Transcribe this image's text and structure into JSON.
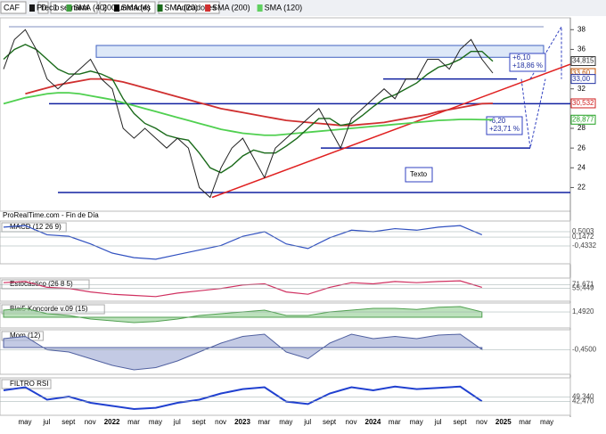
{
  "toolbar": {
    "symbol": "CAF",
    "period_key": "D",
    "period": "1 semana",
    "units": "200 unidades",
    "indicators": "Indicadores"
  },
  "legend": [
    "Precio",
    "SMA (40)",
    "SMA (4)",
    "SMA (20)",
    "SMA (200)",
    "SMA (120)"
  ],
  "main": {
    "source": "ProRealTime.com - Fin de Día",
    "ylim": [
      19.6,
      39.2
    ],
    "yticks": [
      38,
      36,
      32,
      28,
      26,
      24,
      22
    ],
    "tags": [
      {
        "value": 34.815,
        "label": "34,815",
        "color": "#333"
      },
      {
        "value": 33.6,
        "label": "33,60",
        "color": "#c05000"
      },
      {
        "value": 33.0,
        "label": "33,00",
        "color": "#2030a0"
      },
      {
        "value": 30.532,
        "label": "30,532",
        "color": "#d02020"
      },
      {
        "value": 28.877,
        "label": "28,877",
        "color": "#20a020"
      }
    ],
    "price": [
      34,
      37,
      38,
      36,
      33,
      32,
      33,
      34,
      35,
      33,
      32,
      28,
      27,
      28,
      27,
      26,
      27,
      26,
      22,
      21,
      24,
      26,
      27,
      25,
      23,
      26,
      27,
      28,
      29,
      30,
      28,
      26,
      29,
      30,
      31,
      32,
      31,
      33,
      33,
      35,
      35,
      34,
      36,
      37,
      35,
      33.6
    ],
    "sma20": [
      35,
      36,
      36.5,
      36,
      35,
      34,
      33.5,
      33.5,
      33.8,
      33.5,
      33,
      31,
      29.5,
      28.5,
      28,
      27.3,
      27,
      26.8,
      25.5,
      24,
      23.5,
      24.2,
      25.2,
      25.8,
      25.5,
      25.5,
      26.2,
      27,
      28,
      29,
      29,
      28.3,
      28.5,
      29.3,
      30.2,
      31,
      31.4,
      32,
      32.6,
      33.5,
      34.2,
      34.5,
      35,
      35.8,
      35.8,
      34.8
    ],
    "sma200": [
      null,
      null,
      31.5,
      31.8,
      32.1,
      32.4,
      32.6,
      32.8,
      33,
      33,
      32.9,
      32.7,
      32.4,
      32.1,
      31.8,
      31.5,
      31.2,
      30.9,
      30.6,
      30.3,
      30.0,
      29.8,
      29.6,
      29.4,
      29.2,
      29,
      28.8,
      28.7,
      28.6,
      28.5,
      28.4,
      28.3,
      28.3,
      28.4,
      28.5,
      28.6,
      28.8,
      29,
      29.2,
      29.4,
      29.7,
      29.9,
      30.1,
      30.3,
      30.5,
      30.532
    ],
    "sma120": [
      30.5,
      30.8,
      31.1,
      31.3,
      31.5,
      31.6,
      31.6,
      31.5,
      31.3,
      31.1,
      30.9,
      30.6,
      30.3,
      30.0,
      29.7,
      29.4,
      29.1,
      28.8,
      28.5,
      28.2,
      27.9,
      27.7,
      27.5,
      27.4,
      27.3,
      27.3,
      27.4,
      27.5,
      27.6,
      27.7,
      27.8,
      27.9,
      28.0,
      28.1,
      28.2,
      28.3,
      28.4,
      28.5,
      28.6,
      28.7,
      28.8,
      28.85,
      28.9,
      28.9,
      28.88,
      28.877
    ],
    "hlines": [
      {
        "value": 38.3,
        "from": 10,
        "to": 610
      },
      {
        "value": 30.5,
        "from": 55,
        "to": 640
      },
      {
        "value": 21.5,
        "from": 65,
        "to": 640
      },
      {
        "value": 26,
        "from": 360,
        "to": 595
      },
      {
        "value": 33,
        "from": 430,
        "to": 580
      }
    ],
    "box": {
      "top": 36.4,
      "bottom": 35.2
    },
    "trend": [
      21,
      34.5
    ],
    "notes": {
      "up": "+6,10",
      "up_pct": "+18,86 %",
      "down": "-6,20",
      "down_pct": "+23,71 %",
      "text": "Texto"
    }
  },
  "panels": [
    {
      "title": "MACD (12 26 9)",
      "ylim": [
        -1.6,
        1.2
      ],
      "values": [
        0.8,
        0.9,
        0.3,
        0.2,
        -0.3,
        -0.9,
        -1.2,
        -1.3,
        -1.0,
        -0.7,
        -0.4,
        0.2,
        0.5,
        -0.3,
        -0.6,
        0.1,
        0.6,
        0.5,
        0.7,
        0.6,
        0.8,
        0.9,
        0.3
      ],
      "tags": [
        {
          "value": 0.5003,
          "label": "0,5003"
        },
        {
          "value": 0.1472,
          "label": "0,1472"
        },
        {
          "value": -0.4332,
          "label": "-0,4332"
        }
      ]
    },
    {
      "title": "Estocástico (26 8 5)",
      "ylim": [
        0,
        100
      ],
      "values": [
        80,
        85,
        60,
        55,
        40,
        30,
        25,
        20,
        35,
        45,
        55,
        70,
        75,
        40,
        30,
        60,
        80,
        75,
        85,
        80,
        85,
        88,
        60
      ],
      "tags": [
        {
          "value": 71.671,
          "label": "71,671"
        },
        {
          "value": 55.449,
          "label": "55,449"
        }
      ]
    },
    {
      "title": "Blai5 Koncorde v.09 (15)",
      "ylim": [
        -3,
        4
      ],
      "values": [
        2,
        2.5,
        1,
        0.5,
        -0.5,
        -1,
        -1.5,
        -1.2,
        -0.5,
        0.5,
        1,
        1.5,
        2,
        0.5,
        0.5,
        1.5,
        2,
        2.5,
        2.5,
        2.2,
        2.8,
        3,
        1.5
      ],
      "tags": [
        {
          "value": 1.492,
          "label": "1,4920"
        }
      ]
    },
    {
      "title": "Mom (12)",
      "ylim": [
        -6,
        4
      ],
      "values": [
        2,
        2.5,
        -0.5,
        -1,
        -2.5,
        -4,
        -5,
        -4.5,
        -3,
        -1,
        1,
        2.5,
        3,
        -1,
        -2.5,
        1,
        3,
        2,
        2.5,
        2,
        2.8,
        3,
        -0.45
      ],
      "tags": [
        {
          "value": -0.45,
          "label": "-0,4500"
        }
      ]
    },
    {
      "title": "FILTRO RSI",
      "ylim": [
        20,
        80
      ],
      "values": [
        60,
        65,
        45,
        50,
        40,
        35,
        30,
        32,
        40,
        45,
        55,
        62,
        65,
        42,
        38,
        55,
        65,
        60,
        66,
        62,
        64,
        66,
        42.47
      ],
      "tags": [
        {
          "value": 49.34,
          "label": "49,340"
        },
        {
          "value": 42.47,
          "label": "42,470"
        }
      ]
    }
  ],
  "xaxis": [
    "may",
    "jul",
    "sept",
    "nov",
    "2022",
    "mar",
    "may",
    "jul",
    "sept",
    "nov",
    "2023",
    "mar",
    "may",
    "jul",
    "sept",
    "nov",
    "2024",
    "mar",
    "may",
    "jul",
    "sept",
    "nov",
    "2025",
    "mar",
    "may"
  ]
}
